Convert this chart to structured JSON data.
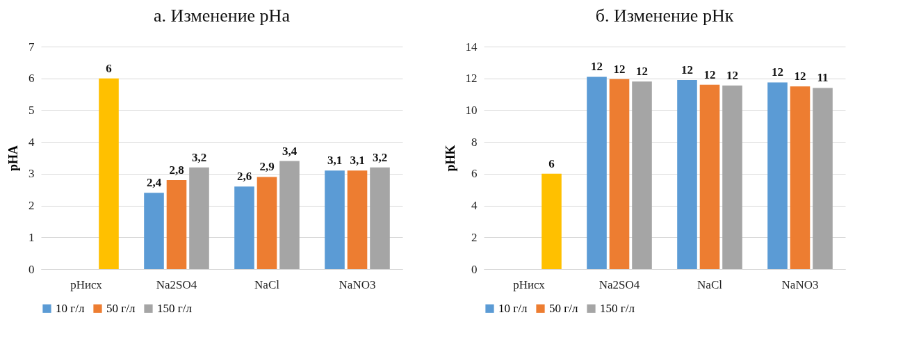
{
  "chart_data": [
    {
      "type": "bar",
      "title": "а. Изменение рНа",
      "ylabel": "pHA",
      "categories": [
        "pHисх",
        "Na2SO4",
        "NaCl",
        "NaNO3"
      ],
      "ylim": [
        0,
        7
      ],
      "yticks": [
        0,
        1,
        2,
        3,
        4,
        5,
        6,
        7
      ],
      "grid": "y",
      "legend": "bottom",
      "series": [
        {
          "name": "10 г/л",
          "color": "#5b9bd5",
          "values": [
            null,
            2.4,
            2.6,
            3.1
          ],
          "value_labels": [
            null,
            "2,4",
            "2,6",
            "3,1"
          ]
        },
        {
          "name": "50 г/л",
          "color": "#ed7d31",
          "values": [
            null,
            2.8,
            2.9,
            3.1
          ],
          "value_labels": [
            null,
            "2,8",
            "2,9",
            "3,1"
          ]
        },
        {
          "name": "150 г/л",
          "color": "#a5a5a5",
          "colors": [
            "#ffc000",
            "#a5a5a5",
            "#a5a5a5",
            "#a5a5a5"
          ],
          "values": [
            6,
            3.2,
            3.4,
            3.2
          ],
          "value_labels": [
            "6",
            "3,2",
            "3,4",
            "3,2"
          ]
        }
      ]
    },
    {
      "type": "bar",
      "title": "б. Изменение рНк",
      "ylabel": "pHK",
      "categories": [
        "pHисх",
        "Na2SO4",
        "NaCl",
        "NaNO3"
      ],
      "ylim": [
        0,
        14
      ],
      "yticks": [
        0,
        2,
        4,
        6,
        8,
        10,
        12,
        14
      ],
      "grid": "y",
      "legend": "bottom",
      "series": [
        {
          "name": "10 г/л",
          "color": "#5b9bd5",
          "values": [
            null,
            12.1,
            11.9,
            11.75
          ],
          "value_labels": [
            null,
            "12",
            "12",
            "12"
          ]
        },
        {
          "name": "50 г/л",
          "color": "#ed7d31",
          "values": [
            null,
            11.95,
            11.6,
            11.5
          ],
          "value_labels": [
            null,
            "12",
            "12",
            "12"
          ]
        },
        {
          "name": "150 г/л",
          "color": "#a5a5a5",
          "colors": [
            "#ffc000",
            "#a5a5a5",
            "#a5a5a5",
            "#a5a5a5"
          ],
          "values": [
            6,
            11.8,
            11.55,
            11.4
          ],
          "value_labels": [
            "6",
            "12",
            "12",
            "11"
          ]
        }
      ]
    }
  ]
}
